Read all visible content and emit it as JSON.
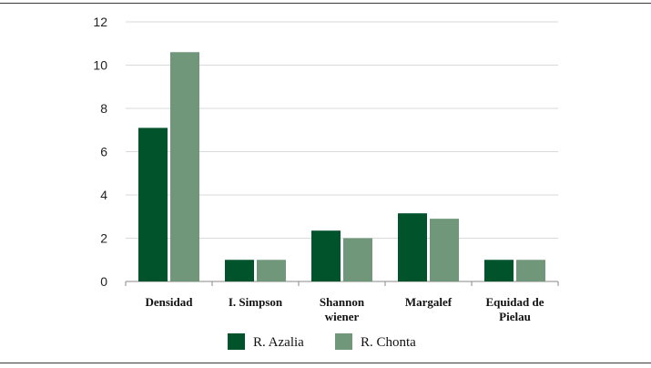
{
  "chart_data": {
    "type": "bar",
    "categories": [
      [
        "Densidad"
      ],
      [
        "I. Simpson"
      ],
      [
        "Shannon",
        "wiener"
      ],
      [
        "Margalef"
      ],
      [
        "Equidad de",
        "Pielau"
      ]
    ],
    "series": [
      {
        "name": "R. Azalia",
        "color": "#00532a",
        "values": [
          7.1,
          1.0,
          2.35,
          3.15,
          1.0
        ]
      },
      {
        "name": "R. Chonta",
        "color": "#70977a",
        "values": [
          10.6,
          1.0,
          2.0,
          2.9,
          1.0
        ]
      }
    ],
    "title": "",
    "xlabel": "",
    "ylabel": "",
    "ylim": [
      0,
      12
    ],
    "yticks": [
      0,
      2,
      4,
      6,
      8,
      10,
      12
    ],
    "grid": true,
    "legend_position": "bottom"
  }
}
